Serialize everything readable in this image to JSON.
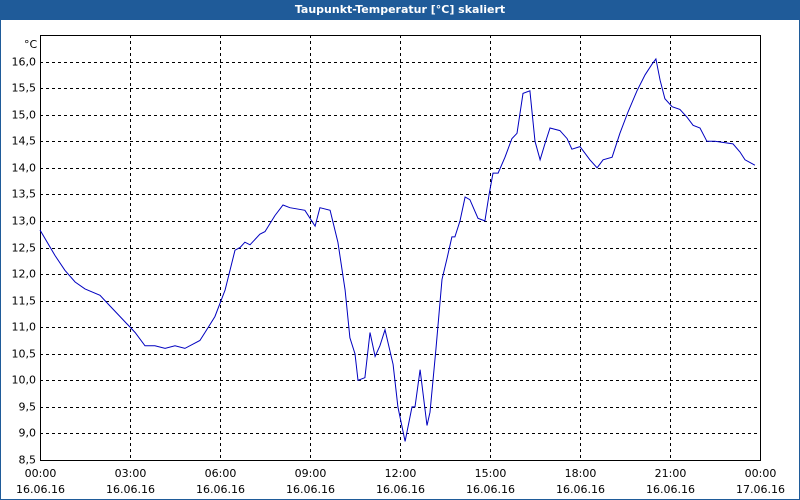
{
  "chart_data": {
    "type": "line",
    "title": "Taupunkt-Temperatur [°C] skaliert",
    "y_label": "°C",
    "xlim": [
      0,
      24
    ],
    "ylim": [
      8.5,
      16.5
    ],
    "grid": true,
    "color": "#0000c0",
    "xticks": [
      {
        "value": 0,
        "label": "00:00",
        "date": "16.06.16"
      },
      {
        "value": 3,
        "label": "03:00",
        "date": "16.06.16"
      },
      {
        "value": 6,
        "label": "06:00",
        "date": "16.06.16"
      },
      {
        "value": 9,
        "label": "09:00",
        "date": "16.06.16"
      },
      {
        "value": 12,
        "label": "12:00",
        "date": "16.06.16"
      },
      {
        "value": 15,
        "label": "15:00",
        "date": "16.06.16"
      },
      {
        "value": 18,
        "label": "18:00",
        "date": "16.06.16"
      },
      {
        "value": 21,
        "label": "21:00",
        "date": "16.06.16"
      },
      {
        "value": 24,
        "label": "00:00",
        "date": "17.06.16"
      }
    ],
    "yticks": [
      {
        "value": 8.5,
        "label": "8,5"
      },
      {
        "value": 9.0,
        "label": "9,0"
      },
      {
        "value": 9.5,
        "label": "9,5"
      },
      {
        "value": 10.0,
        "label": "10,0"
      },
      {
        "value": 10.5,
        "label": "10,5"
      },
      {
        "value": 11.0,
        "label": "11,0"
      },
      {
        "value": 11.5,
        "label": "11,5"
      },
      {
        "value": 12.0,
        "label": "12,0"
      },
      {
        "value": 12.5,
        "label": "12,5"
      },
      {
        "value": 13.0,
        "label": "13,0"
      },
      {
        "value": 13.5,
        "label": "13,5"
      },
      {
        "value": 14.0,
        "label": "14,0"
      },
      {
        "value": 14.5,
        "label": "14,5"
      },
      {
        "value": 15.0,
        "label": "15,0"
      },
      {
        "value": 15.5,
        "label": "15,5"
      },
      {
        "value": 16.0,
        "label": "16,0"
      }
    ],
    "x": [
      0,
      0.5,
      0.83,
      1.17,
      1.5,
      2,
      2.33,
      2.67,
      3.17,
      3.5,
      3.83,
      4.17,
      4.5,
      4.83,
      5.33,
      5.5,
      5.83,
      6.17,
      6.5,
      6.67,
      6.83,
      7,
      7.33,
      7.5,
      7.83,
      8.1,
      8.33,
      8.83,
      9.17,
      9.33,
      9.67,
      9.93,
      10.17,
      10.33,
      10.5,
      10.6,
      10.83,
      11,
      11.17,
      11.33,
      11.5,
      11.77,
      11.93,
      12.17,
      12.4,
      12.5,
      12.67,
      12.9,
      13,
      13.2,
      13.4,
      13.57,
      13.73,
      13.83,
      14,
      14.17,
      14.33,
      14.6,
      14.83,
      14.97,
      15.1,
      15.27,
      15.5,
      15.73,
      15.9,
      16.1,
      16.33,
      16.5,
      16.67,
      16.83,
      17,
      17.33,
      17.57,
      17.73,
      18,
      18.33,
      18.57,
      18.77,
      19.07,
      19.33,
      19.6,
      19.9,
      20.17,
      20.4,
      20.53,
      20.67,
      20.83,
      21.07,
      21.33,
      21.57,
      21.77,
      22,
      22.23,
      22.5,
      23.1,
      23.33,
      23.5,
      23.83
    ],
    "values": [
      12.83,
      12.35,
      12.07,
      11.85,
      11.72,
      11.6,
      11.4,
      11.2,
      10.9,
      10.65,
      10.65,
      10.6,
      10.65,
      10.6,
      10.75,
      10.9,
      11.2,
      11.7,
      12.45,
      12.5,
      12.6,
      12.55,
      12.75,
      12.8,
      13.1,
      13.3,
      13.25,
      13.2,
      12.9,
      13.25,
      13.2,
      12.6,
      11.7,
      10.8,
      10.5,
      10.0,
      10.05,
      10.9,
      10.45,
      10.65,
      10.95,
      10.3,
      9.5,
      8.85,
      9.5,
      9.5,
      10.2,
      9.15,
      9.4,
      10.6,
      11.9,
      12.3,
      12.7,
      12.7,
      13.0,
      13.45,
      13.4,
      13.05,
      13.0,
      13.5,
      13.9,
      13.9,
      14.2,
      14.55,
      14.65,
      15.4,
      15.45,
      14.5,
      14.15,
      14.45,
      14.75,
      14.7,
      14.55,
      14.35,
      14.4,
      14.15,
      14.0,
      14.15,
      14.2,
      14.65,
      15.05,
      15.45,
      15.75,
      15.95,
      16.05,
      15.65,
      15.3,
      15.15,
      15.1,
      14.95,
      14.8,
      14.75,
      14.5,
      14.5,
      14.45,
      14.3,
      14.15,
      14.05
    ]
  }
}
